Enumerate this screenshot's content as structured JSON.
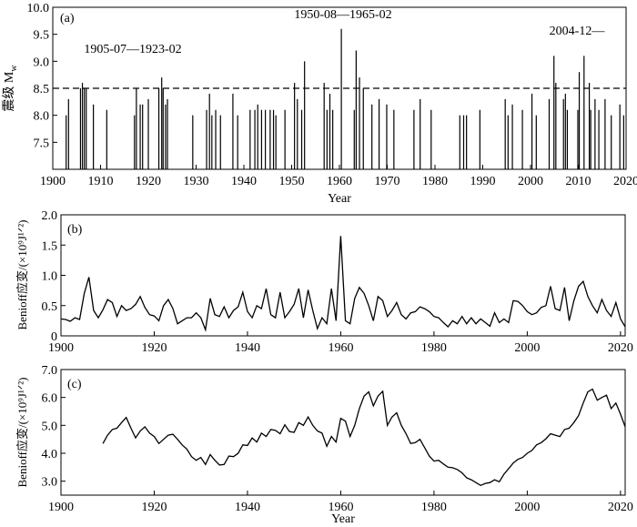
{
  "chart_data": [
    {
      "panel": "(a)",
      "type": "bar",
      "title": "",
      "xlabel": "Year",
      "ylabel": "震级 M",
      "ylabel_sub": "w",
      "xlim": [
        1900,
        2020
      ],
      "ylim": [
        7.0,
        10.0
      ],
      "xticks": [
        1900,
        1910,
        1920,
        1930,
        1940,
        1950,
        1960,
        1970,
        1980,
        1990,
        2000,
        2010,
        2020
      ],
      "yticks": [
        7.5,
        8.0,
        8.5,
        9.0,
        9.5,
        10.0
      ],
      "ytick_labels": [
        "7.5",
        "8.0",
        "8.5",
        "9.0",
        "9.5",
        "10.0"
      ],
      "threshold": 8.5,
      "annotations": [
        "1905-07—1923-02",
        "1950-08—1965-02",
        "2004-12—"
      ],
      "x": [
        1902.8,
        1903.3,
        1905.8,
        1906.2,
        1906.6,
        1907.0,
        1908.5,
        1911.3,
        1917.1,
        1917.5,
        1918.3,
        1918.8,
        1920.0,
        1922.2,
        1922.8,
        1923.1,
        1923.6,
        1924.0,
        1929.3,
        1932.2,
        1932.8,
        1933.3,
        1934.1,
        1935.1,
        1937.7,
        1938.7,
        1941.3,
        1942.3,
        1942.9,
        1943.7,
        1944.5,
        1945.5,
        1946.2,
        1946.7,
        1948.6,
        1950.6,
        1951.2,
        1952.1,
        1952.7,
        1956.8,
        1957.4,
        1958.0,
        1958.6,
        1960.4,
        1963.1,
        1963.5,
        1964.2,
        1965.0,
        1966.8,
        1968.3,
        1969.9,
        1971.4,
        1975.6,
        1976.9,
        1979.2,
        1985.2,
        1986.0,
        1986.6,
        1989.4,
        1994.7,
        1995.3,
        1996.2,
        1998.3,
        2000.3,
        2001.2,
        2003.9,
        2004.9,
        2005.3,
        2006.9,
        2007.3,
        2007.7,
        2009.9,
        2010.2,
        2011.2,
        2012.3,
        2012.6,
        2013.5,
        2014.3,
        2015.6,
        2016.9,
        2018.7,
        2019.5
      ],
      "values": [
        8.0,
        8.3,
        8.5,
        8.6,
        8.5,
        8.5,
        8.2,
        8.1,
        8.0,
        8.5,
        8.2,
        8.2,
        8.3,
        8.5,
        8.7,
        8.5,
        8.2,
        8.3,
        8.0,
        8.1,
        8.4,
        8.0,
        8.1,
        8.0,
        8.4,
        8.0,
        8.1,
        8.1,
        8.2,
        8.1,
        8.1,
        8.1,
        8.1,
        8.0,
        8.1,
        8.6,
        8.3,
        8.1,
        9.0,
        8.6,
        8.1,
        8.4,
        8.1,
        9.6,
        8.1,
        9.2,
        8.7,
        8.5,
        8.2,
        8.3,
        8.2,
        8.1,
        8.1,
        8.3,
        8.1,
        8.0,
        8.0,
        8.0,
        8.1,
        8.3,
        8.0,
        8.2,
        8.1,
        8.4,
        8.0,
        8.3,
        9.1,
        8.6,
        8.3,
        8.4,
        8.1,
        8.1,
        8.8,
        9.1,
        8.6,
        8.1,
        8.3,
        8.1,
        8.3,
        8.0,
        8.2,
        8.0
      ]
    },
    {
      "panel": "(b)",
      "type": "line",
      "title": "",
      "xlabel": "",
      "ylabel": "Benioff应变/(×10⁹J¹ᐟ²)",
      "xlim": [
        1900,
        2021
      ],
      "ylim": [
        0,
        2.0
      ],
      "xticks": [
        1900,
        1920,
        1940,
        1960,
        1980,
        2000,
        2020
      ],
      "yticks": [
        0,
        0.5,
        1.0,
        1.5,
        2.0
      ],
      "ytick_labels": [
        "0",
        "0.5",
        "1.0",
        "1.5",
        "2.0"
      ],
      "x": [
        1900,
        1901,
        1902,
        1903,
        1904,
        1905,
        1906,
        1907,
        1908,
        1909,
        1910,
        1911,
        1912,
        1913,
        1914,
        1915,
        1916,
        1917,
        1918,
        1919,
        1920,
        1921,
        1922,
        1923,
        1924,
        1925,
        1926,
        1927,
        1928,
        1929,
        1930,
        1931,
        1932,
        1933,
        1934,
        1935,
        1936,
        1937,
        1938,
        1939,
        1940,
        1941,
        1942,
        1943,
        1944,
        1945,
        1946,
        1947,
        1948,
        1949,
        1950,
        1951,
        1952,
        1953,
        1954,
        1955,
        1956,
        1957,
        1958,
        1959,
        1960,
        1961,
        1962,
        1963,
        1964,
        1965,
        1966,
        1967,
        1968,
        1969,
        1970,
        1971,
        1972,
        1973,
        1974,
        1975,
        1976,
        1977,
        1978,
        1979,
        1980,
        1981,
        1982,
        1983,
        1984,
        1985,
        1986,
        1987,
        1988,
        1989,
        1990,
        1991,
        1992,
        1993,
        1994,
        1995,
        1996,
        1997,
        1998,
        1999,
        2000,
        2001,
        2002,
        2003,
        2004,
        2005,
        2006,
        2007,
        2008,
        2009,
        2010,
        2011,
        2012,
        2013,
        2014,
        2015,
        2016,
        2017,
        2018,
        2019,
        2020,
        2021
      ],
      "values": [
        0.28,
        0.27,
        0.24,
        0.3,
        0.27,
        0.7,
        0.97,
        0.42,
        0.3,
        0.43,
        0.6,
        0.55,
        0.32,
        0.5,
        0.42,
        0.45,
        0.52,
        0.65,
        0.47,
        0.35,
        0.33,
        0.25,
        0.5,
        0.6,
        0.45,
        0.2,
        0.25,
        0.3,
        0.3,
        0.38,
        0.3,
        0.1,
        0.62,
        0.35,
        0.32,
        0.48,
        0.3,
        0.42,
        0.48,
        0.72,
        0.4,
        0.3,
        0.5,
        0.45,
        0.78,
        0.35,
        0.3,
        0.72,
        0.3,
        0.4,
        0.52,
        0.78,
        0.3,
        0.76,
        0.42,
        0.12,
        0.3,
        0.2,
        0.78,
        0.25,
        1.65,
        0.25,
        0.2,
        0.62,
        0.8,
        0.7,
        0.5,
        0.25,
        0.65,
        0.58,
        0.32,
        0.42,
        0.55,
        0.35,
        0.28,
        0.38,
        0.4,
        0.48,
        0.45,
        0.4,
        0.32,
        0.3,
        0.22,
        0.15,
        0.25,
        0.2,
        0.32,
        0.2,
        0.3,
        0.2,
        0.28,
        0.22,
        0.16,
        0.38,
        0.22,
        0.28,
        0.22,
        0.58,
        0.57,
        0.5,
        0.4,
        0.35,
        0.38,
        0.47,
        0.5,
        0.82,
        0.45,
        0.42,
        0.8,
        0.25,
        0.58,
        0.82,
        0.9,
        0.65,
        0.5,
        0.38,
        0.6,
        0.42,
        0.32,
        0.55,
        0.28,
        0.15
      ]
    },
    {
      "panel": "(c)",
      "type": "line",
      "title": "",
      "xlabel": "Year",
      "ylabel": "Benioff应变/(×10⁹J¹ᐟ²)",
      "xlim": [
        1900,
        2021
      ],
      "ylim": [
        2.5,
        7.0
      ],
      "xticks": [
        1900,
        1920,
        1940,
        1960,
        1980,
        2000,
        2020
      ],
      "yticks": [
        3.0,
        4.0,
        5.0,
        6.0,
        7.0
      ],
      "ytick_labels": [
        "3.0",
        "4.0",
        "5.0",
        "6.0",
        "7.0"
      ],
      "x": [
        1909,
        1910,
        1911,
        1912,
        1913,
        1914,
        1915,
        1916,
        1917,
        1918,
        1919,
        1920,
        1921,
        1922,
        1923,
        1924,
        1925,
        1926,
        1927,
        1928,
        1929,
        1930,
        1931,
        1932,
        1933,
        1934,
        1935,
        1936,
        1937,
        1938,
        1939,
        1940,
        1941,
        1942,
        1943,
        1944,
        1945,
        1946,
        1947,
        1948,
        1949,
        1950,
        1951,
        1952,
        1953,
        1954,
        1955,
        1956,
        1957,
        1958,
        1959,
        1960,
        1961,
        1962,
        1963,
        1964,
        1965,
        1966,
        1967,
        1968,
        1969,
        1970,
        1971,
        1972,
        1973,
        1974,
        1975,
        1976,
        1977,
        1978,
        1979,
        1980,
        1981,
        1982,
        1983,
        1984,
        1985,
        1986,
        1987,
        1988,
        1989,
        1990,
        1991,
        1992,
        1993,
        1994,
        1995,
        1996,
        1997,
        1998,
        1999,
        2000,
        2001,
        2002,
        2003,
        2004,
        2005,
        2006,
        2007,
        2008,
        2009,
        2010,
        2011,
        2012,
        2013,
        2014,
        2015,
        2016,
        2017,
        2018,
        2019,
        2020,
        2021
      ],
      "values": [
        4.35,
        4.65,
        4.85,
        4.9,
        5.1,
        5.28,
        4.9,
        4.55,
        4.8,
        4.95,
        4.72,
        4.6,
        4.35,
        4.5,
        4.65,
        4.68,
        4.5,
        4.3,
        4.15,
        3.88,
        3.75,
        3.85,
        3.6,
        3.95,
        3.75,
        3.58,
        3.6,
        3.9,
        3.88,
        4.0,
        4.3,
        4.28,
        4.55,
        4.4,
        4.72,
        4.6,
        4.85,
        4.82,
        4.7,
        5.02,
        4.78,
        4.75,
        5.1,
        5.0,
        5.3,
        5.0,
        4.8,
        4.72,
        4.25,
        4.6,
        4.4,
        5.25,
        5.15,
        4.6,
        5.0,
        5.6,
        6.05,
        6.2,
        5.7,
        6.05,
        6.22,
        5.0,
        5.3,
        5.45,
        5.0,
        4.7,
        4.35,
        4.38,
        4.5,
        4.2,
        3.9,
        3.72,
        3.75,
        3.62,
        3.5,
        3.48,
        3.42,
        3.3,
        3.12,
        3.05,
        2.95,
        2.85,
        2.92,
        2.95,
        3.05,
        2.98,
        3.25,
        3.45,
        3.65,
        3.78,
        3.85,
        4.0,
        4.1,
        4.3,
        4.38,
        4.52,
        4.7,
        4.65,
        4.6,
        4.85,
        4.9,
        5.1,
        5.35,
        5.8,
        6.2,
        6.3,
        5.9,
        6.0,
        6.08,
        5.6,
        5.8,
        5.4,
        4.95
      ]
    }
  ]
}
